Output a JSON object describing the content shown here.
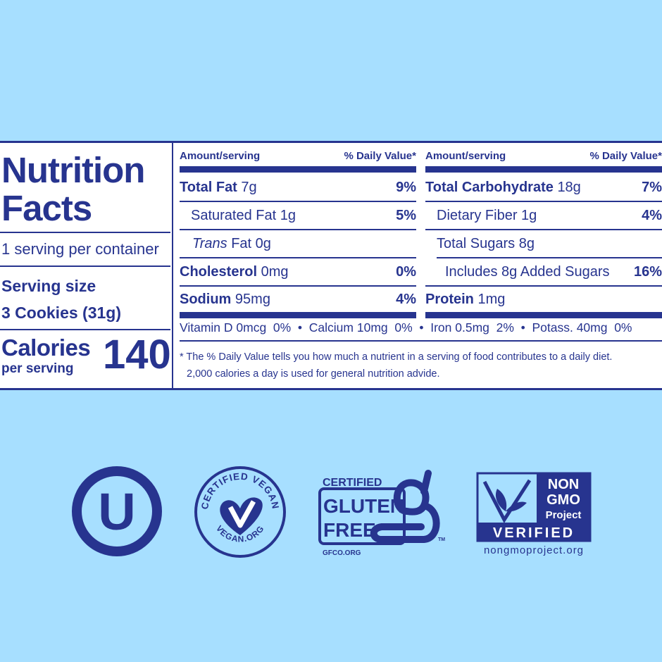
{
  "nutrition": {
    "title_line1": "Nutrition",
    "title_line2": "Facts",
    "servings_per_container": "1 serving per container",
    "serving_size_label": "Serving size",
    "serving_size_value": "3 Cookies (31g)",
    "calories_label": "Calories",
    "calories_sublabel": "per serving",
    "calories_value": "140",
    "header_amount": "Amount/serving",
    "header_dv": "% Daily Value*",
    "left_rows": [
      {
        "name": "Total Fat",
        "amount": "7g",
        "dv": "9%"
      },
      {
        "name": "Saturated Fat",
        "amount": "1g",
        "dv": "5%"
      },
      {
        "name": "Trans",
        "name_rest": " Fat",
        "amount": "0g",
        "dv": ""
      },
      {
        "name": "Cholesterol",
        "amount": "0mg",
        "dv": "0%"
      },
      {
        "name": "Sodium",
        "amount": "95mg",
        "dv": "4%"
      }
    ],
    "right_rows": [
      {
        "name": "Total Carbohydrate",
        "amount": "18g",
        "dv": "7%"
      },
      {
        "name": "Dietary Fiber",
        "amount": "1g",
        "dv": "4%"
      },
      {
        "name": "Total Sugars",
        "amount": "8g",
        "dv": ""
      },
      {
        "name": "Includes 8g Added Sugars",
        "amount": "",
        "dv": "16%"
      },
      {
        "name": "Protein",
        "amount": "1mg",
        "dv": ""
      }
    ],
    "vitamins": "Vitamin D 0mcg  0%  •  Calcium 10mg  0%  •  Iron 0.5mg  2%  •  Potass. 40mg  0%",
    "footnote_line1": "* The % Daily Value tells you how much a nutrient in a serving of food contributes to a daily diet.",
    "footnote_line2": "2,000 calories a day is used for general nutrition advide."
  },
  "logos": {
    "kosher_letter": "U",
    "vegan_top": "CERTIFIED VEGAN",
    "vegan_bottom": "VEGAN.ORG",
    "gluten_certified": "CERTIFIED",
    "gluten_line1": "GLUTEN",
    "gluten_line2": "FREE",
    "gluten_tm": "TM",
    "gluten_site": "GFCO.ORG",
    "nongmo_line1": "NON",
    "nongmo_line2": "GMO",
    "nongmo_line3": "Project",
    "nongmo_verified": "VERIFIED",
    "nongmo_site": "nongmoproject.org"
  },
  "colors": {
    "background": "#a7dfff",
    "ink": "#27348f",
    "panel": "#ffffff"
  }
}
